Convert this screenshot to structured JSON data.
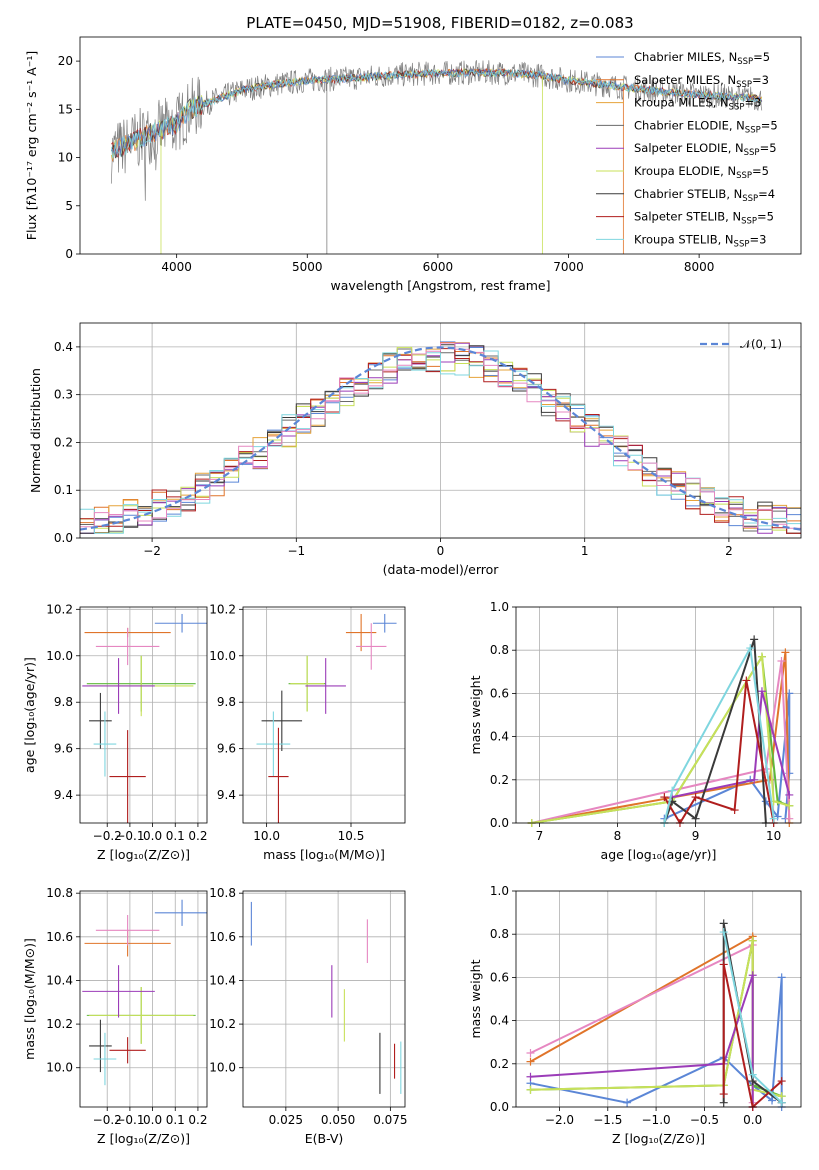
{
  "title": "PLATE=0450, MJD=51908, FIBERID=0182, z=0.083",
  "colors": {
    "Chabrier MILES": "#5b86d6",
    "Salpeter MILES": "#e0742a",
    "Kroupa MILES": "#e6a33a",
    "Chabrier ELODIE": "#6a6a6a",
    "Salpeter ELODIE": "#9b3cb8",
    "Kroupa ELODIE": "#c8e05a",
    "Chabrier STELIB": "#3a3a3a",
    "Salpeter STELIB": "#b01e1e",
    "Kroupa STELIB": "#7fd6df",
    "pink": "#e687c1",
    "green": "#5fb83a",
    "normal": "#5b86d6"
  },
  "chart_data": [
    {
      "type": "line",
      "name": "spectrum",
      "xlabel": "wavelength [Angstrom, rest frame]",
      "ylabel": "Flux [fλ10⁻¹⁷ erg cm⁻² s⁻¹ A⁻¹]",
      "xlim": [
        3260,
        8780
      ],
      "ylim": [
        0,
        22.5
      ],
      "xticks": [
        "4000",
        "5000",
        "6000",
        "7000",
        "8000"
      ],
      "yticks": [
        "0",
        "5",
        "10",
        "15",
        "20"
      ],
      "continuum": [
        [
          3500,
          10.5
        ],
        [
          3650,
          11.5
        ],
        [
          3800,
          12.5
        ],
        [
          3900,
          13
        ],
        [
          4000,
          13.5
        ],
        [
          4100,
          15
        ],
        [
          4300,
          16
        ],
        [
          4500,
          17
        ],
        [
          4700,
          17.5
        ],
        [
          5000,
          18
        ],
        [
          5300,
          18.2
        ],
        [
          5600,
          18.5
        ],
        [
          5900,
          18.7
        ],
        [
          6200,
          18.8
        ],
        [
          6500,
          18.8
        ],
        [
          6800,
          18.5
        ],
        [
          7000,
          18
        ],
        [
          7300,
          17.5
        ],
        [
          7600,
          17
        ],
        [
          8000,
          16.5
        ],
        [
          8400,
          16.2
        ],
        [
          8500,
          16
        ]
      ],
      "legend": [
        {
          "label": "Chabrier MILES, N",
          "sub": "SSP",
          "tail": "=5"
        },
        {
          "label": "Salpeter MILES, N",
          "sub": "SSP",
          "tail": "=3"
        },
        {
          "label": "Kroupa MILES, N",
          "sub": "SSP",
          "tail": "=3"
        },
        {
          "label": "Chabrier ELODIE, N",
          "sub": "SSP",
          "tail": "=5"
        },
        {
          "label": "Salpeter ELODIE, N",
          "sub": "SSP",
          "tail": "=5"
        },
        {
          "label": "Kroupa ELODIE, N",
          "sub": "SSP",
          "tail": "=5"
        },
        {
          "label": "Chabrier STELIB, N",
          "sub": "SSP",
          "tail": "=4"
        },
        {
          "label": "Salpeter STELIB, N",
          "sub": "SSP",
          "tail": "=5"
        },
        {
          "label": "Kroupa STELIB, N",
          "sub": "SSP",
          "tail": "=3"
        }
      ]
    },
    {
      "type": "bar",
      "name": "residual histogram",
      "xlabel": "(data-model)/error",
      "ylabel": "Normed distribution",
      "xlim": [
        -2.5,
        2.5
      ],
      "ylim": [
        0,
        0.45
      ],
      "xticks": [
        "−2",
        "−1",
        "0",
        "1",
        "2"
      ],
      "yticks": [
        "0.0",
        "0.1",
        "0.2",
        "0.3",
        "0.4"
      ],
      "bin_width": 0.1,
      "normal_label": "𝒩(0, 1)",
      "series_count": 10
    },
    {
      "type": "scatter",
      "name": "age vs Z",
      "xlabel": "Z [log₁₀(Z/Z⊙)]",
      "ylabel": "age  [log₁₀(age/yr)]",
      "xlim": [
        -0.32,
        0.24
      ],
      "ylim": [
        9.28,
        10.21
      ],
      "xticks": [
        "−0.2",
        "−0.1",
        "0.0",
        "0.1",
        "0.2"
      ],
      "yticks": [
        "9.4",
        "9.6",
        "9.8",
        "10.0",
        "10.2"
      ],
      "points": [
        {
          "x": 0.13,
          "y": 10.14,
          "xerr": 0.12,
          "yerr": 0.04,
          "c": "Chabrier MILES"
        },
        {
          "x": -0.11,
          "y": 10.1,
          "xerr": 0.19,
          "yerr": 0.02,
          "c": "Salpeter MILES"
        },
        {
          "x": -0.11,
          "y": 10.04,
          "xerr": 0.14,
          "yerr": 0.08,
          "c": "pink"
        },
        {
          "x": -0.05,
          "y": 9.88,
          "xerr": 0.24,
          "yerr": 0.12,
          "c": "green"
        },
        {
          "x": -0.05,
          "y": 9.87,
          "xerr": 0.23,
          "yerr": 0.13,
          "c": "Kroupa ELODIE"
        },
        {
          "x": -0.15,
          "y": 9.87,
          "xerr": 0.16,
          "yerr": 0.12,
          "c": "Salpeter ELODIE"
        },
        {
          "x": -0.23,
          "y": 9.72,
          "xerr": 0.05,
          "yerr": 0.12,
          "c": "Chabrier STELIB"
        },
        {
          "x": -0.21,
          "y": 9.62,
          "xerr": 0.05,
          "yerr": 0.14,
          "c": "Kroupa STELIB"
        },
        {
          "x": -0.11,
          "y": 9.48,
          "xerr": 0.08,
          "yerr": 0.2,
          "c": "Salpeter STELIB"
        }
      ]
    },
    {
      "type": "scatter",
      "name": "age vs mass",
      "xlabel": "mass [log₁₀(M/M⊙)]",
      "ylabel": "",
      "xlim": [
        9.86,
        10.82
      ],
      "ylim": [
        9.28,
        10.21
      ],
      "xticks": [
        "10.0",
        "10.5"
      ],
      "yticks": [
        "9.4",
        "9.6",
        "9.8",
        "10.0",
        "10.2"
      ],
      "points": [
        {
          "x": 10.7,
          "y": 10.14,
          "xerr": 0.07,
          "yerr": 0.04,
          "c": "Chabrier MILES"
        },
        {
          "x": 10.56,
          "y": 10.1,
          "xerr": 0.09,
          "yerr": 0.08,
          "c": "Salpeter MILES"
        },
        {
          "x": 10.62,
          "y": 10.04,
          "xerr": 0.09,
          "yerr": 0.1,
          "c": "pink"
        },
        {
          "x": 10.24,
          "y": 9.88,
          "xerr": 0.11,
          "yerr": 0.12,
          "c": "green"
        },
        {
          "x": 10.24,
          "y": 9.88,
          "xerr": 0.1,
          "yerr": 0.12,
          "c": "Kroupa ELODIE"
        },
        {
          "x": 10.35,
          "y": 9.87,
          "xerr": 0.12,
          "yerr": 0.12,
          "c": "Salpeter ELODIE"
        },
        {
          "x": 10.09,
          "y": 9.72,
          "xerr": 0.12,
          "yerr": 0.13,
          "c": "Chabrier STELIB"
        },
        {
          "x": 10.04,
          "y": 9.62,
          "xerr": 0.1,
          "yerr": 0.14,
          "c": "Kroupa STELIB"
        },
        {
          "x": 10.07,
          "y": 9.48,
          "xerr": 0.06,
          "yerr": 0.21,
          "c": "Salpeter STELIB"
        }
      ]
    },
    {
      "type": "line",
      "name": "mass weight vs age",
      "xlabel": "age  [log₁₀(age/yr)]",
      "ylabel": "mass weight",
      "xlim": [
        6.7,
        10.35
      ],
      "ylim": [
        0,
        1
      ],
      "xticks": [
        "7",
        "8",
        "9",
        "10"
      ],
      "yticks": [
        "0.0",
        "0.2",
        "0.4",
        "0.6",
        "0.8",
        "1.0"
      ],
      "series": [
        {
          "c": "Chabrier MILES",
          "pts": [
            [
              8.6,
              0.02
            ],
            [
              9.7,
              0.2
            ],
            [
              9.9,
              0.1
            ],
            [
              10.05,
              0.03
            ],
            [
              10.2,
              0.6
            ],
            [
              10.2,
              0.23
            ],
            [
              10.15,
              0.02
            ]
          ]
        },
        {
          "c": "Salpeter MILES",
          "pts": [
            [
              6.9,
              0.0
            ],
            [
              9.95,
              0.2
            ],
            [
              10.15,
              0.79
            ],
            [
              10.2,
              0.0
            ]
          ]
        },
        {
          "c": "pink",
          "pts": [
            [
              6.9,
              0.0
            ],
            [
              9.9,
              0.25
            ],
            [
              10.1,
              0.75
            ],
            [
              10.2,
              0.02
            ]
          ]
        },
        {
          "c": "green",
          "pts": [
            [
              6.9,
              0.0
            ],
            [
              8.7,
              0.1
            ],
            [
              9.85,
              0.77
            ],
            [
              10.05,
              0.1
            ],
            [
              10.2,
              0.08
            ]
          ]
        },
        {
          "c": "Kroupa ELODIE",
          "pts": [
            [
              6.9,
              0.0
            ],
            [
              8.7,
              0.1
            ],
            [
              9.85,
              0.77
            ],
            [
              10.0,
              0.1
            ],
            [
              10.2,
              0.08
            ]
          ]
        },
        {
          "c": "Salpeter ELODIE",
          "pts": [
            [
              8.7,
              0.12
            ],
            [
              9.75,
              0.2
            ],
            [
              9.85,
              0.61
            ],
            [
              10.2,
              0.13
            ]
          ]
        },
        {
          "c": "Chabrier STELIB",
          "pts": [
            [
              8.6,
              0.0
            ],
            [
              8.7,
              0.1
            ],
            [
              9.0,
              0.02
            ],
            [
              9.75,
              0.85
            ],
            [
              9.9,
              0.0
            ]
          ]
        },
        {
          "c": "Salpeter STELIB",
          "pts": [
            [
              8.6,
              0.12
            ],
            [
              8.8,
              0.0
            ],
            [
              9.0,
              0.12
            ],
            [
              9.5,
              0.06
            ],
            [
              9.65,
              0.66
            ],
            [
              10.0,
              0.0
            ]
          ]
        },
        {
          "c": "Kroupa STELIB",
          "pts": [
            [
              8.6,
              0.0
            ],
            [
              8.7,
              0.15
            ],
            [
              9.7,
              0.81
            ],
            [
              10.0,
              0.02
            ]
          ]
        }
      ]
    },
    {
      "type": "scatter",
      "name": "mass vs Z",
      "xlabel": "Z [log₁₀(Z/Z⊙)]",
      "ylabel": "mass [log₁₀(M/M⊙)]",
      "xlim": [
        -0.32,
        0.24
      ],
      "ylim": [
        9.82,
        10.81
      ],
      "xticks": [
        "−0.2",
        "−0.1",
        "0.0",
        "0.1",
        "0.2"
      ],
      "yticks": [
        "10.0",
        "10.2",
        "10.4",
        "10.6",
        "10.8"
      ],
      "points": [
        {
          "x": 0.13,
          "y": 10.71,
          "xerr": 0.12,
          "yerr": 0.06,
          "c": "Chabrier MILES"
        },
        {
          "x": -0.11,
          "y": 10.57,
          "xerr": 0.19,
          "yerr": 0.06,
          "c": "Salpeter MILES"
        },
        {
          "x": -0.11,
          "y": 10.63,
          "xerr": 0.14,
          "yerr": 0.07,
          "c": "pink"
        },
        {
          "x": -0.05,
          "y": 10.24,
          "xerr": 0.24,
          "yerr": 0.13,
          "c": "green"
        },
        {
          "x": -0.05,
          "y": 10.24,
          "xerr": 0.23,
          "yerr": 0.13,
          "c": "Kroupa ELODIE"
        },
        {
          "x": -0.15,
          "y": 10.35,
          "xerr": 0.16,
          "yerr": 0.12,
          "c": "Salpeter ELODIE"
        },
        {
          "x": -0.23,
          "y": 10.1,
          "xerr": 0.05,
          "yerr": 0.12,
          "c": "Chabrier STELIB"
        },
        {
          "x": -0.21,
          "y": 10.04,
          "xerr": 0.05,
          "yerr": 0.12,
          "c": "Kroupa STELIB"
        },
        {
          "x": -0.11,
          "y": 10.08,
          "xerr": 0.08,
          "yerr": 0.06,
          "c": "Salpeter STELIB"
        }
      ]
    },
    {
      "type": "scatter",
      "name": "mass vs E(B-V)",
      "xlabel": "E(B-V)",
      "ylabel": "",
      "xlim": [
        0.0045,
        0.082
      ],
      "ylim": [
        9.82,
        10.81
      ],
      "xticks": [
        "0.025",
        "0.050",
        "0.075"
      ],
      "yticks": [
        "10.0",
        "10.2",
        "10.4",
        "10.6",
        "10.8"
      ],
      "points": [
        {
          "x": 0.0085,
          "y": 10.66,
          "xerr": 0.0,
          "yerr": 0.1,
          "c": "Chabrier MILES"
        },
        {
          "x": 0.064,
          "y": 10.58,
          "xerr": 0.0,
          "yerr": 0.1,
          "c": "pink"
        },
        {
          "x": 0.047,
          "y": 10.35,
          "xerr": 0.0,
          "yerr": 0.12,
          "c": "Salpeter ELODIE"
        },
        {
          "x": 0.053,
          "y": 10.24,
          "xerr": 0.0,
          "yerr": 0.12,
          "c": "Kroupa ELODIE"
        },
        {
          "x": 0.07,
          "y": 10.02,
          "xerr": 0.0,
          "yerr": 0.14,
          "c": "Chabrier STELIB"
        },
        {
          "x": 0.077,
          "y": 10.03,
          "xerr": 0.0,
          "yerr": 0.08,
          "c": "Salpeter STELIB"
        },
        {
          "x": 0.08,
          "y": 10.0,
          "xerr": 0.0,
          "yerr": 0.12,
          "c": "Kroupa STELIB"
        }
      ]
    },
    {
      "type": "line",
      "name": "mass weight vs Z",
      "xlabel": "Z [log₁₀(Z/Z⊙)]",
      "ylabel": "mass weight",
      "xlim": [
        -2.45,
        0.5
      ],
      "ylim": [
        0,
        1
      ],
      "xticks": [
        "−2.0",
        "−1.5",
        "−1.0",
        "−0.5",
        "0.0"
      ],
      "yticks": [
        "0.0",
        "0.2",
        "0.4",
        "0.6",
        "0.8",
        "1.0"
      ],
      "series": [
        {
          "c": "Chabrier MILES",
          "pts": [
            [
              -2.3,
              0.11
            ],
            [
              -1.3,
              0.02
            ],
            [
              -0.3,
              0.23
            ],
            [
              0.0,
              0.1
            ],
            [
              0.2,
              0.03
            ],
            [
              0.3,
              0.6
            ],
            [
              0.3,
              0.0
            ]
          ]
        },
        {
          "c": "Salpeter MILES",
          "pts": [
            [
              -2.3,
              0.21
            ],
            [
              0.0,
              0.79
            ],
            [
              0.0,
              0.0
            ]
          ]
        },
        {
          "c": "pink",
          "pts": [
            [
              -2.3,
              0.25
            ],
            [
              0.0,
              0.75
            ],
            [
              0.0,
              0.02
            ]
          ]
        },
        {
          "c": "green",
          "pts": [
            [
              -2.3,
              0.08
            ],
            [
              -0.3,
              0.1
            ],
            [
              0.0,
              0.77
            ],
            [
              0.0,
              0.1
            ],
            [
              0.3,
              0.05
            ]
          ]
        },
        {
          "c": "Kroupa ELODIE",
          "pts": [
            [
              -2.3,
              0.08
            ],
            [
              -0.3,
              0.1
            ],
            [
              0.0,
              0.77
            ],
            [
              0.0,
              0.08
            ],
            [
              0.3,
              0.05
            ]
          ]
        },
        {
          "c": "Salpeter ELODIE",
          "pts": [
            [
              -2.3,
              0.14
            ],
            [
              -0.3,
              0.2
            ],
            [
              0.0,
              0.61
            ],
            [
              0.0,
              0.0
            ]
          ]
        },
        {
          "c": "Chabrier STELIB",
          "pts": [
            [
              -0.3,
              0.02
            ],
            [
              -0.3,
              0.85
            ],
            [
              0.0,
              0.12
            ],
            [
              0.3,
              0.02
            ]
          ]
        },
        {
          "c": "Salpeter STELIB",
          "pts": [
            [
              -0.3,
              0.06
            ],
            [
              -0.3,
              0.66
            ],
            [
              0.0,
              0.0
            ],
            [
              0.3,
              0.12
            ]
          ]
        },
        {
          "c": "Kroupa STELIB",
          "pts": [
            [
              -0.3,
              0.81
            ],
            [
              0.0,
              0.15
            ],
            [
              0.3,
              0.02
            ]
          ]
        }
      ]
    }
  ]
}
